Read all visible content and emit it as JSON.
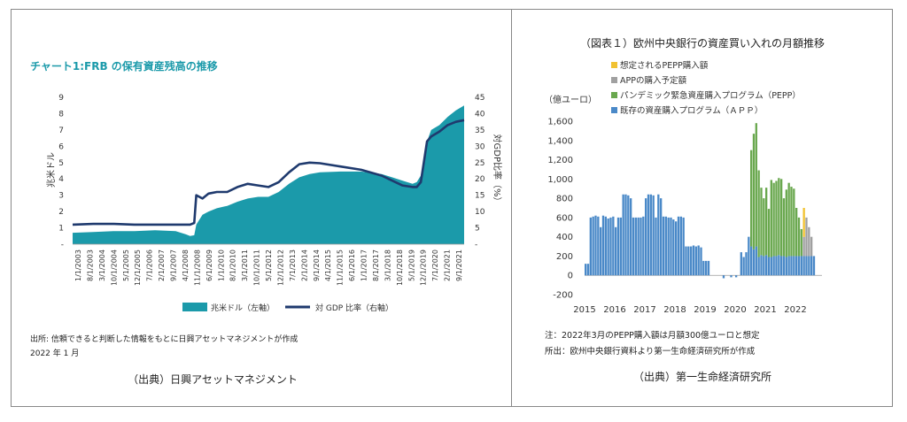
{
  "left": {
    "title": "チャート1:FRB の保有資産残高の推移",
    "source_line1": "出所: 信頼できると判断した情報をもとに日興アセットマネジメントが作成",
    "source_line2": "2022 年 1 月",
    "caption": "（出典）日興アセットマネジメント",
    "colors": {
      "area": "#1b9aaa",
      "line": "#1f3a6e",
      "title": "#1b9aaa"
    },
    "chart_data": {
      "type": "area",
      "title": "チャート1:FRB の保有資産残高の推移",
      "ylabel": "兆米ドル",
      "ylabel_right": "対GDP比率（%）",
      "ylim": [
        0,
        9
      ],
      "ylim_right": [
        0,
        45
      ],
      "yticks": [
        "-",
        "1",
        "2",
        "3",
        "4",
        "5",
        "6",
        "7",
        "8",
        "9"
      ],
      "yticks_right": [
        "-",
        "5",
        "10",
        "15",
        "20",
        "25",
        "30",
        "35",
        "40",
        "45"
      ],
      "xticks": [
        "1/1/2003",
        "8/1/2003",
        "3/1/2004",
        "10/1/2004",
        "5/1/2005",
        "12/1/2005",
        "7/1/2006",
        "2/1/2007",
        "9/1/2007",
        "4/1/2008",
        "11/1/2008",
        "6/1/2009",
        "1/1/2010",
        "8/1/2010",
        "3/1/2011",
        "10/1/2011",
        "5/1/2012",
        "12/1/2012",
        "7/1/2013",
        "2/1/2014",
        "9/1/2014",
        "4/1/2015",
        "11/1/2015",
        "6/1/2016",
        "1/1/2017",
        "8/1/2017",
        "3/1/2018",
        "10/1/2018",
        "5/1/2019",
        "12/1/2019",
        "7/1/2020",
        "2/1/2021",
        "9/1/2021"
      ],
      "x": [
        2003.0,
        2004.0,
        2005.0,
        2006.0,
        2007.0,
        2008.0,
        2008.5,
        2008.7,
        2008.9,
        2009.0,
        2009.3,
        2009.6,
        2010.0,
        2010.5,
        2011.0,
        2011.5,
        2012.0,
        2012.5,
        2013.0,
        2013.5,
        2014.0,
        2014.5,
        2015.0,
        2016.0,
        2017.0,
        2018.0,
        2018.5,
        2019.0,
        2019.5,
        2019.7,
        2019.9,
        2020.2,
        2020.4,
        2020.8,
        2021.2,
        2021.6,
        2022.0
      ],
      "series": [
        {
          "name": "兆米ドル（左軸）",
          "axis": "left",
          "values": [
            0.7,
            0.75,
            0.8,
            0.8,
            0.85,
            0.8,
            0.6,
            0.5,
            0.55,
            1.2,
            1.8,
            2.0,
            2.2,
            2.35,
            2.6,
            2.8,
            2.9,
            2.9,
            3.2,
            3.7,
            4.1,
            4.3,
            4.4,
            4.45,
            4.45,
            4.3,
            4.1,
            3.9,
            3.7,
            3.8,
            4.2,
            6.3,
            7.0,
            7.3,
            7.8,
            8.2,
            8.5
          ]
        },
        {
          "name": "対 GDP 比率（右軸）",
          "axis": "right",
          "values": [
            6.0,
            6.2,
            6.2,
            6.0,
            6.0,
            6.0,
            6.0,
            6.0,
            6.5,
            15.0,
            14.0,
            15.5,
            16.0,
            16.0,
            17.5,
            18.5,
            18.0,
            17.5,
            19.0,
            22.0,
            24.5,
            25.0,
            24.8,
            23.8,
            22.8,
            21.0,
            19.5,
            18.0,
            17.5,
            17.5,
            19.0,
            31.5,
            33.0,
            34.5,
            36.5,
            37.5,
            38.0
          ]
        }
      ],
      "legend": [
        "兆米ドル（左軸）",
        "対 GDP 比率（右軸）"
      ],
      "legend_position": "bottom",
      "grid": false
    }
  },
  "right": {
    "title": "（図表１）欧州中央銀行の資産買い入れの月額推移",
    "unit_label": "（億ユーロ）",
    "note1": "注：2022年3月のPEPP購入額は月額300億ユーロと想定",
    "note2": "所出：欧州中央銀行資料より第一生命経済研究所が作成",
    "caption": "（出典）第一生命経済研究所",
    "colors": {
      "app": "#4a89c8",
      "pepp": "#6aa84f",
      "app_plan": "#a0a0a0",
      "pepp_assumed": "#f1c232"
    },
    "chart_data": {
      "type": "bar",
      "stacked": true,
      "title": "（図表１）欧州中央銀行の資産買い入れの月額推移",
      "ylabel": "（億ユーロ）",
      "ylim": [
        -200,
        1600
      ],
      "yticks": [
        "-200",
        "0",
        "200",
        "400",
        "600",
        "800",
        "1,000",
        "1,200",
        "1,400",
        "1,600"
      ],
      "xticks": [
        "2015",
        "2016",
        "2017",
        "2018",
        "2019",
        "2020",
        "2021",
        "2022"
      ],
      "x_start": 2015.0,
      "month_step": 0.08333,
      "legend": [
        "想定されるPEPP購入額",
        "APPの購入予定額",
        "パンデミック緊急資産購入プログラム（PEPP）",
        "既存の資産購入プログラム（ＡＰＰ）"
      ],
      "legend_position": "top-left",
      "grid": false,
      "series": [
        {
          "name": "既存の資産購入プログラム（ＡＰＰ）",
          "values": [
            120,
            120,
            600,
            610,
            620,
            610,
            500,
            620,
            610,
            590,
            600,
            610,
            500,
            600,
            600,
            840,
            840,
            830,
            800,
            600,
            600,
            600,
            600,
            610,
            800,
            840,
            840,
            830,
            600,
            840,
            800,
            610,
            610,
            600,
            600,
            580,
            560,
            610,
            610,
            600,
            300,
            300,
            300,
            310,
            300,
            310,
            290,
            150,
            150,
            150,
            0,
            0,
            0,
            0,
            0,
            -30,
            0,
            0,
            -20,
            0,
            -20,
            0,
            240,
            190,
            240,
            400,
            300,
            270,
            300,
            190,
            210,
            200,
            210,
            190,
            190,
            200,
            200,
            210,
            200,
            200,
            190,
            200,
            200,
            200,
            200,
            200,
            200,
            200,
            200,
            200,
            200,
            200
          ]
        },
        {
          "name": "パンデミック緊急資産購入プログラム（PEPP）",
          "values": [
            0,
            0,
            0,
            0,
            0,
            0,
            0,
            0,
            0,
            0,
            0,
            0,
            0,
            0,
            0,
            0,
            0,
            0,
            0,
            0,
            0,
            0,
            0,
            0,
            0,
            0,
            0,
            0,
            0,
            0,
            0,
            0,
            0,
            0,
            0,
            0,
            0,
            0,
            0,
            0,
            0,
            0,
            0,
            0,
            0,
            0,
            0,
            0,
            0,
            0,
            0,
            0,
            0,
            0,
            0,
            0,
            0,
            0,
            0,
            0,
            0,
            0,
            0,
            0,
            0,
            0,
            1000,
            1200,
            1280,
            900,
            700,
            600,
            700,
            500,
            800,
            760,
            780,
            800,
            800,
            600,
            700,
            760,
            720,
            700,
            500,
            400,
            280,
            0,
            0,
            0,
            0,
            0
          ]
        },
        {
          "name": "APPの購入予定額",
          "values": [
            0,
            0,
            0,
            0,
            0,
            0,
            0,
            0,
            0,
            0,
            0,
            0,
            0,
            0,
            0,
            0,
            0,
            0,
            0,
            0,
            0,
            0,
            0,
            0,
            0,
            0,
            0,
            0,
            0,
            0,
            0,
            0,
            0,
            0,
            0,
            0,
            0,
            0,
            0,
            0,
            0,
            0,
            0,
            0,
            0,
            0,
            0,
            0,
            0,
            0,
            0,
            0,
            0,
            0,
            0,
            0,
            0,
            0,
            0,
            0,
            0,
            0,
            0,
            0,
            0,
            0,
            0,
            0,
            0,
            0,
            0,
            0,
            0,
            0,
            0,
            0,
            0,
            0,
            0,
            0,
            0,
            0,
            0,
            0,
            0,
            0,
            0,
            200,
            400,
            300,
            200,
            0
          ]
        },
        {
          "name": "想定されるPEPP購入額",
          "values": [
            0,
            0,
            0,
            0,
            0,
            0,
            0,
            0,
            0,
            0,
            0,
            0,
            0,
            0,
            0,
            0,
            0,
            0,
            0,
            0,
            0,
            0,
            0,
            0,
            0,
            0,
            0,
            0,
            0,
            0,
            0,
            0,
            0,
            0,
            0,
            0,
            0,
            0,
            0,
            0,
            0,
            0,
            0,
            0,
            0,
            0,
            0,
            0,
            0,
            0,
            0,
            0,
            0,
            0,
            0,
            0,
            0,
            0,
            0,
            0,
            0,
            0,
            0,
            0,
            0,
            0,
            0,
            0,
            0,
            0,
            0,
            0,
            0,
            0,
            0,
            0,
            0,
            0,
            0,
            0,
            0,
            0,
            0,
            0,
            0,
            0,
            0,
            300,
            0,
            0,
            0,
            0
          ]
        }
      ]
    }
  }
}
